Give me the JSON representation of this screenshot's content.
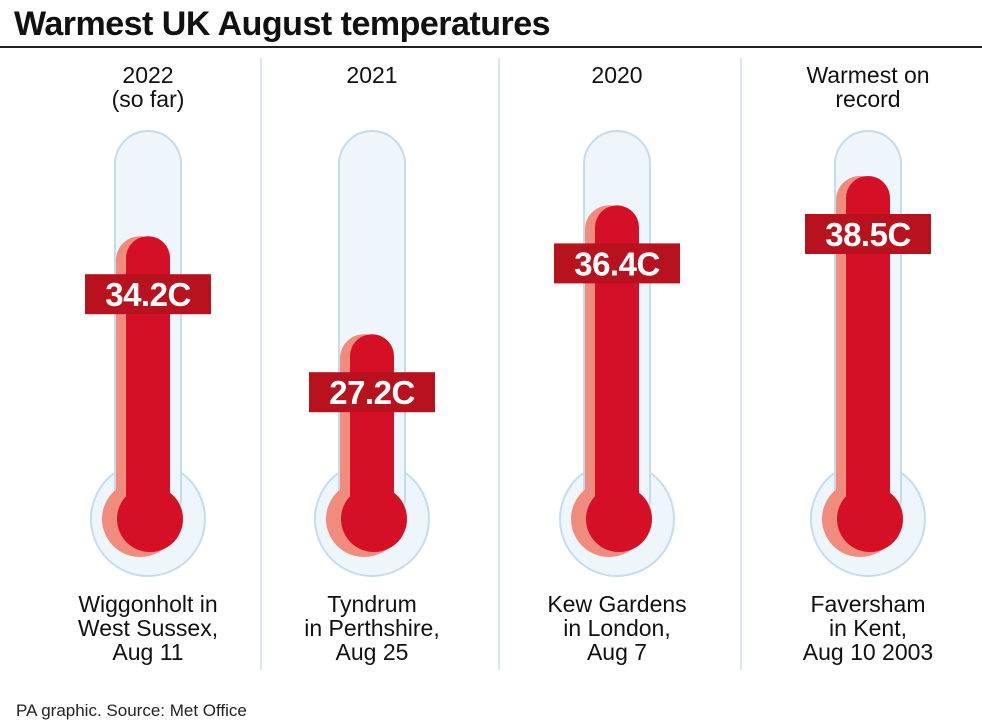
{
  "title": "Warmest UK August temperatures",
  "source": "PA graphic. Source: Met Office",
  "colors": {
    "mercury": "#d50f25",
    "mercury_shadow": "#ef8c7e",
    "glass_fill": "#eef5fb",
    "glass_stroke": "#c5dcee",
    "label_bg": "#b8121e",
    "label_text": "#ffffff",
    "divider": "#cfe1f0"
  },
  "chart_data": {
    "type": "bar",
    "style": "thermometer",
    "title": "Warmest UK August temperatures",
    "unit": "C",
    "ylim": [
      20,
      40
    ],
    "categories": [
      "2022\n(so far)",
      "2021",
      "2020",
      "Warmest on\nrecord"
    ],
    "values": [
      34.2,
      27.2,
      36.4,
      38.5
    ],
    "value_labels": [
      "34.2C",
      "27.2C",
      "36.4C",
      "38.5C"
    ],
    "locations": [
      "Wiggonholt in\nWest Sussex,\nAug 11",
      "Tyndrum\nin Perthshire,\nAug 25",
      "Kew Gardens\nin London,\nAug 7",
      "Faversham\nin Kent,\nAug 10 2003"
    ]
  }
}
